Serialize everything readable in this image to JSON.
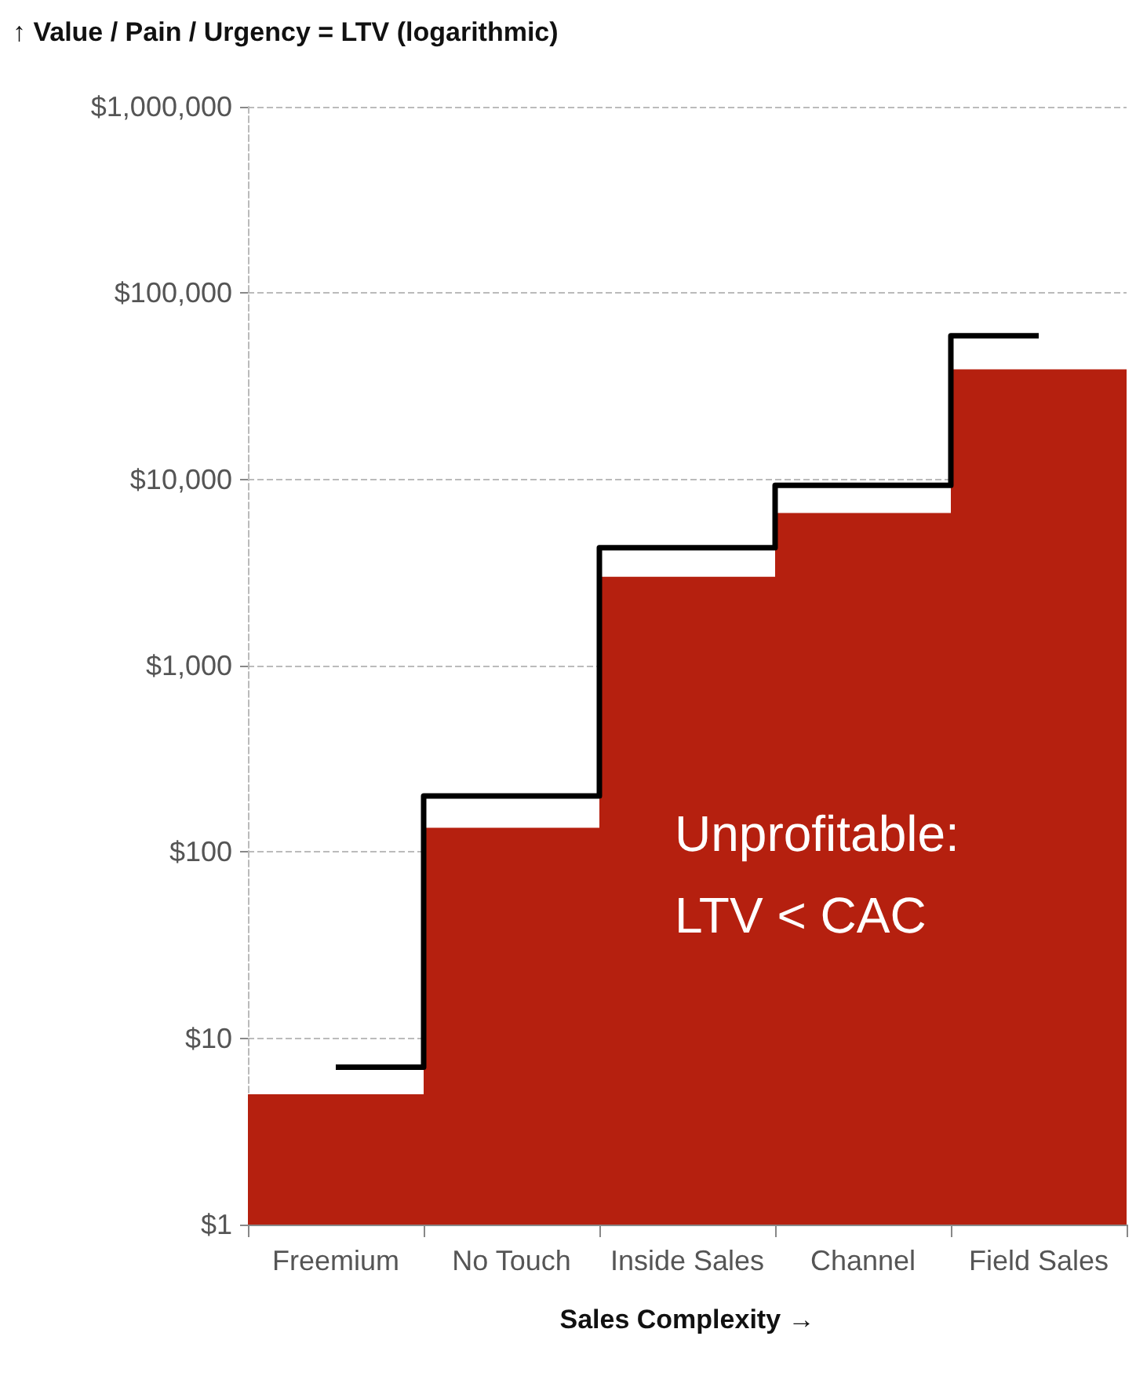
{
  "chart_data": {
    "type": "bar",
    "xlabel": "Sales Complexity →",
    "ylabel": "↑ Value / Pain / Urgency = LTV (logarithmic)",
    "categories": [
      "Freemium",
      "No Touch",
      "Inside Sales",
      "Channel",
      "Field Sales"
    ],
    "series": [
      {
        "color": "#b5200f",
        "values": [
          5,
          135,
          3000,
          6600,
          39000
        ]
      },
      {
        "type": "step",
        "color": "#000000",
        "values": [
          7,
          200,
          4300,
          9300,
          59000
        ]
      }
    ],
    "log": "y",
    "ylim": [
      1,
      1000000
    ],
    "yticks": [
      {
        "value": 1,
        "label": "$1"
      },
      {
        "value": 10,
        "label": "$10"
      },
      {
        "value": 100,
        "label": "$100"
      },
      {
        "value": 1000,
        "label": "$1,000"
      },
      {
        "value": 10000,
        "label": "$10,000"
      },
      {
        "value": 100000,
        "label": "$100,000"
      },
      {
        "value": 1000000,
        "label": "$1,000,000"
      }
    ],
    "grid": "y",
    "marker": "none",
    "annotations": [
      "Unprofitable:\nLTV < CAC"
    ]
  }
}
